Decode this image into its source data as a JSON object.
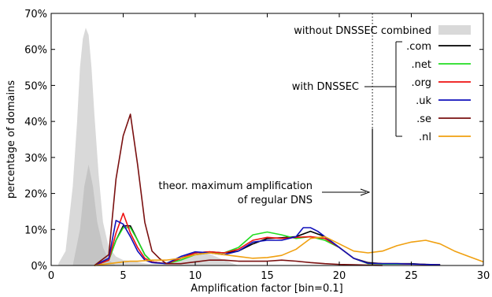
{
  "chart_data": {
    "type": "line",
    "title": "",
    "xlabel": "Amplification factor [bin=0.1]",
    "ylabel": "percentage of domains",
    "xlim": [
      0,
      30
    ],
    "ylim": [
      0,
      70
    ],
    "xticks": [
      0,
      5,
      10,
      15,
      20,
      25,
      30
    ],
    "xtick_labels": [
      "0",
      "5",
      "10",
      "15",
      "20",
      "25",
      "30"
    ],
    "yticks": [
      0,
      10,
      20,
      30,
      40,
      50,
      60,
      70
    ],
    "ytick_labels": [
      "0%",
      "10%",
      "20%",
      "30%",
      "40%",
      "50%",
      "60%",
      "70%"
    ],
    "grid": false,
    "legend_position": "top-right",
    "vline_x": 22.3,
    "annotations": [
      {
        "id": "dnssec",
        "text": "with DNSSEC"
      },
      {
        "id": "theor1",
        "text": "theor. maximum amplification"
      },
      {
        "id": "theor2",
        "text": "of regular DNS"
      }
    ],
    "filled_series": [
      {
        "name": "without DNSSEC combined",
        "color": "#d9d9d9",
        "x": [
          0.5,
          1.0,
          1.5,
          1.8,
          2.0,
          2.2,
          2.4,
          2.6,
          2.8,
          3.0,
          3.3,
          3.6,
          4.0,
          4.5,
          5.0,
          5.5,
          6.0,
          6.5,
          7.0,
          8.0,
          9.0,
          10.0,
          10.5,
          11.0,
          12.0,
          13.0
        ],
        "values": [
          0.5,
          4,
          22,
          40,
          55,
          63,
          66,
          64,
          55,
          42,
          25,
          12,
          5,
          2.5,
          1.5,
          1.3,
          1.0,
          0.6,
          0.4,
          1.0,
          2.5,
          3.5,
          3.8,
          3.2,
          1.5,
          0
        ]
      },
      {
        "name": "",
        "color": "#c4c4c4",
        "x": [
          1.5,
          2.0,
          2.3,
          2.6,
          2.9,
          3.2,
          3.6,
          4.0,
          4.5
        ],
        "values": [
          0,
          10,
          22,
          28,
          22,
          12,
          5,
          1.5,
          0
        ]
      }
    ],
    "series": [
      {
        "name": ".com",
        "color": "#000000",
        "x": [
          3,
          4,
          4.5,
          5,
          5.5,
          6,
          6.5,
          7,
          8,
          9,
          10,
          11,
          12,
          13,
          14,
          15,
          16,
          17,
          18,
          19,
          20,
          21,
          22,
          23,
          24,
          25,
          26,
          27
        ],
        "values": [
          0,
          1.5,
          7,
          11,
          11,
          7,
          3,
          1,
          0.5,
          2,
          3.5,
          3.8,
          3.5,
          4,
          6,
          7.5,
          7.7,
          8,
          9.5,
          8,
          5,
          2,
          0.8,
          0.5,
          0.5,
          0.5,
          0.3,
          0.2
        ]
      },
      {
        "name": ".net",
        "color": "#22dd22",
        "x": [
          3,
          4,
          4.5,
          5,
          5.5,
          6,
          6.5,
          7,
          8,
          9,
          10,
          11,
          12,
          13,
          14,
          15,
          16,
          17,
          18,
          19,
          20,
          21,
          22,
          23,
          24,
          25,
          26,
          27
        ],
        "values": [
          0,
          1.5,
          7,
          10.5,
          10.5,
          7,
          3,
          1,
          0.5,
          1.5,
          3,
          3.5,
          3.5,
          5,
          8.5,
          9.3,
          8.5,
          7.5,
          8,
          7,
          5,
          2,
          0.5,
          0.4,
          0.4,
          0.4,
          0.3,
          0.2
        ]
      },
      {
        "name": ".org",
        "color": "#ee1111",
        "x": [
          3,
          4,
          4.5,
          5,
          5.5,
          6,
          6.5,
          7,
          8,
          9,
          10,
          11,
          12,
          13,
          14,
          15,
          16,
          17,
          18,
          19,
          20,
          21,
          22,
          23,
          24,
          25,
          26,
          27
        ],
        "values": [
          0,
          1.5,
          9,
          14.5,
          9,
          5,
          2,
          1,
          0.5,
          2,
          3.5,
          3.8,
          3.5,
          4.5,
          7,
          7.8,
          7.5,
          7.8,
          8,
          7.5,
          5,
          2,
          0.6,
          0.5,
          0.5,
          0.4,
          0.3,
          0.2
        ]
      },
      {
        "name": ".uk",
        "color": "#1111bb",
        "x": [
          3,
          4,
          4.5,
          5,
          5.5,
          6,
          6.5,
          7,
          8,
          9,
          10,
          11,
          12,
          13,
          14,
          15,
          16,
          17,
          17.5,
          18,
          18.5,
          19,
          20,
          21,
          22,
          23,
          24,
          25,
          26,
          27
        ],
        "values": [
          0,
          2,
          12.5,
          11.5,
          8,
          4,
          1.5,
          0.8,
          0.5,
          2.5,
          3.8,
          3.5,
          3,
          4,
          6.5,
          7,
          7,
          8,
          10.5,
          10.5,
          9.5,
          8,
          5,
          2,
          0.6,
          0.5,
          0.5,
          0.4,
          0.3,
          0.2
        ]
      },
      {
        "name": ".se",
        "color": "#7a1010",
        "x": [
          3,
          4,
          4.5,
          5,
          5.5,
          6,
          6.5,
          7,
          7.5,
          8,
          9,
          10,
          11,
          12,
          13,
          14,
          15,
          16,
          17,
          18,
          19,
          20,
          21,
          22,
          23
        ],
        "values": [
          0,
          3,
          24,
          36,
          42,
          28,
          12,
          4,
          2,
          0.5,
          0.5,
          1,
          1.5,
          1.5,
          1.2,
          1.2,
          1.2,
          1.5,
          1.2,
          0.8,
          0.5,
          0.3,
          0.2,
          0.1,
          0
        ]
      },
      {
        "name": ".nl",
        "color": "#f0a010",
        "x": [
          3,
          4,
          5,
          5.5,
          6,
          7,
          8,
          9,
          10,
          11,
          12,
          13,
          14,
          15,
          16,
          17,
          18,
          19,
          20,
          21,
          22,
          23,
          24,
          25,
          26,
          27,
          28,
          29,
          30
        ],
        "values": [
          0,
          0.5,
          1,
          1.2,
          1.2,
          1.5,
          1.5,
          2,
          3,
          3.5,
          3,
          2.5,
          2,
          2.2,
          2.8,
          4.5,
          7.5,
          8,
          6,
          4,
          3.5,
          4,
          5.5,
          6.5,
          7,
          6,
          4,
          2.5,
          1
        ]
      }
    ]
  }
}
